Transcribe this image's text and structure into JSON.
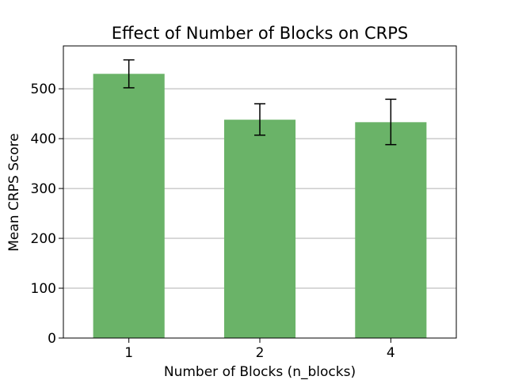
{
  "chart_data": {
    "type": "bar",
    "title": "Effect of Number of Blocks on CRPS",
    "xlabel": "Number of Blocks (n_blocks)",
    "ylabel": "Mean CRPS Score",
    "categories": [
      "1",
      "2",
      "4"
    ],
    "values": [
      530,
      438,
      433
    ],
    "error_low": [
      502,
      407,
      388
    ],
    "error_high": [
      558,
      470,
      479
    ],
    "ylim": [
      0,
      586
    ],
    "yticks": [
      0,
      100,
      200,
      300,
      400,
      500
    ],
    "grid": "horizontal",
    "bar_color": "#6ab368",
    "error_color": "#000000",
    "grid_color": "#b0b0b0"
  }
}
